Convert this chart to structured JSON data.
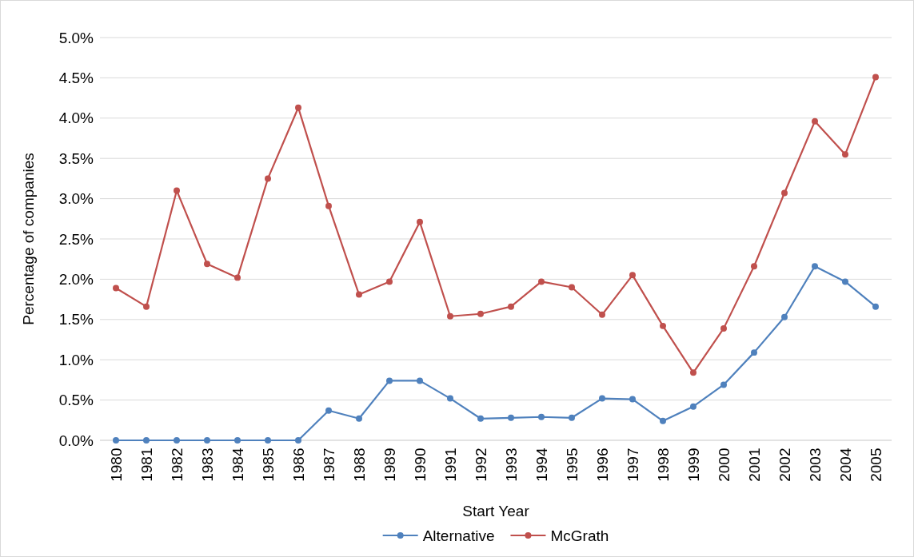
{
  "chart_data": {
    "type": "line",
    "xlabel": "Start Year",
    "ylabel": "Percentage of companies",
    "categories": [
      "1980",
      "1981",
      "1982",
      "1983",
      "1984",
      "1985",
      "1986",
      "1987",
      "1988",
      "1989",
      "1990",
      "1991",
      "1992",
      "1993",
      "1994",
      "1995",
      "1996",
      "1997",
      "1998",
      "1999",
      "2000",
      "2001",
      "2002",
      "2003",
      "2004",
      "2005"
    ],
    "series": [
      {
        "name": "Alternative",
        "color": "#4f81bd",
        "values": [
          0,
          0,
          0,
          0,
          0,
          0,
          0,
          0.37,
          0.27,
          0.74,
          0.74,
          0.52,
          0.27,
          0.28,
          0.29,
          0.28,
          0.52,
          0.51,
          0.24,
          0.42,
          0.69,
          1.09,
          1.53,
          2.16,
          1.97,
          1.66
        ]
      },
      {
        "name": "McGrath",
        "color": "#c0504d",
        "values": [
          1.89,
          1.66,
          3.1,
          2.19,
          2.02,
          3.25,
          4.13,
          2.91,
          1.81,
          1.97,
          2.71,
          1.54,
          1.57,
          1.66,
          1.97,
          1.9,
          1.56,
          2.05,
          1.42,
          0.84,
          1.39,
          2.16,
          3.07,
          3.96,
          3.55,
          4.51
        ]
      }
    ],
    "ylim": [
      0,
      5
    ],
    "yticks": [
      {
        "value": 0,
        "label": "0.0%"
      },
      {
        "value": 0.5,
        "label": "0.5%"
      },
      {
        "value": 1,
        "label": "1.0%"
      },
      {
        "value": 1.5,
        "label": "1.5%"
      },
      {
        "value": 2,
        "label": "2.0%"
      },
      {
        "value": 2.5,
        "label": "2.5%"
      },
      {
        "value": 3,
        "label": "3.0%"
      },
      {
        "value": 3.5,
        "label": "3.5%"
      },
      {
        "value": 4,
        "label": "4.0%"
      },
      {
        "value": 4.5,
        "label": "4.5%"
      },
      {
        "value": 5,
        "label": "5.0%"
      }
    ],
    "grid": "y",
    "legend": "bottom",
    "marker": "circle",
    "line_style": "solid"
  }
}
